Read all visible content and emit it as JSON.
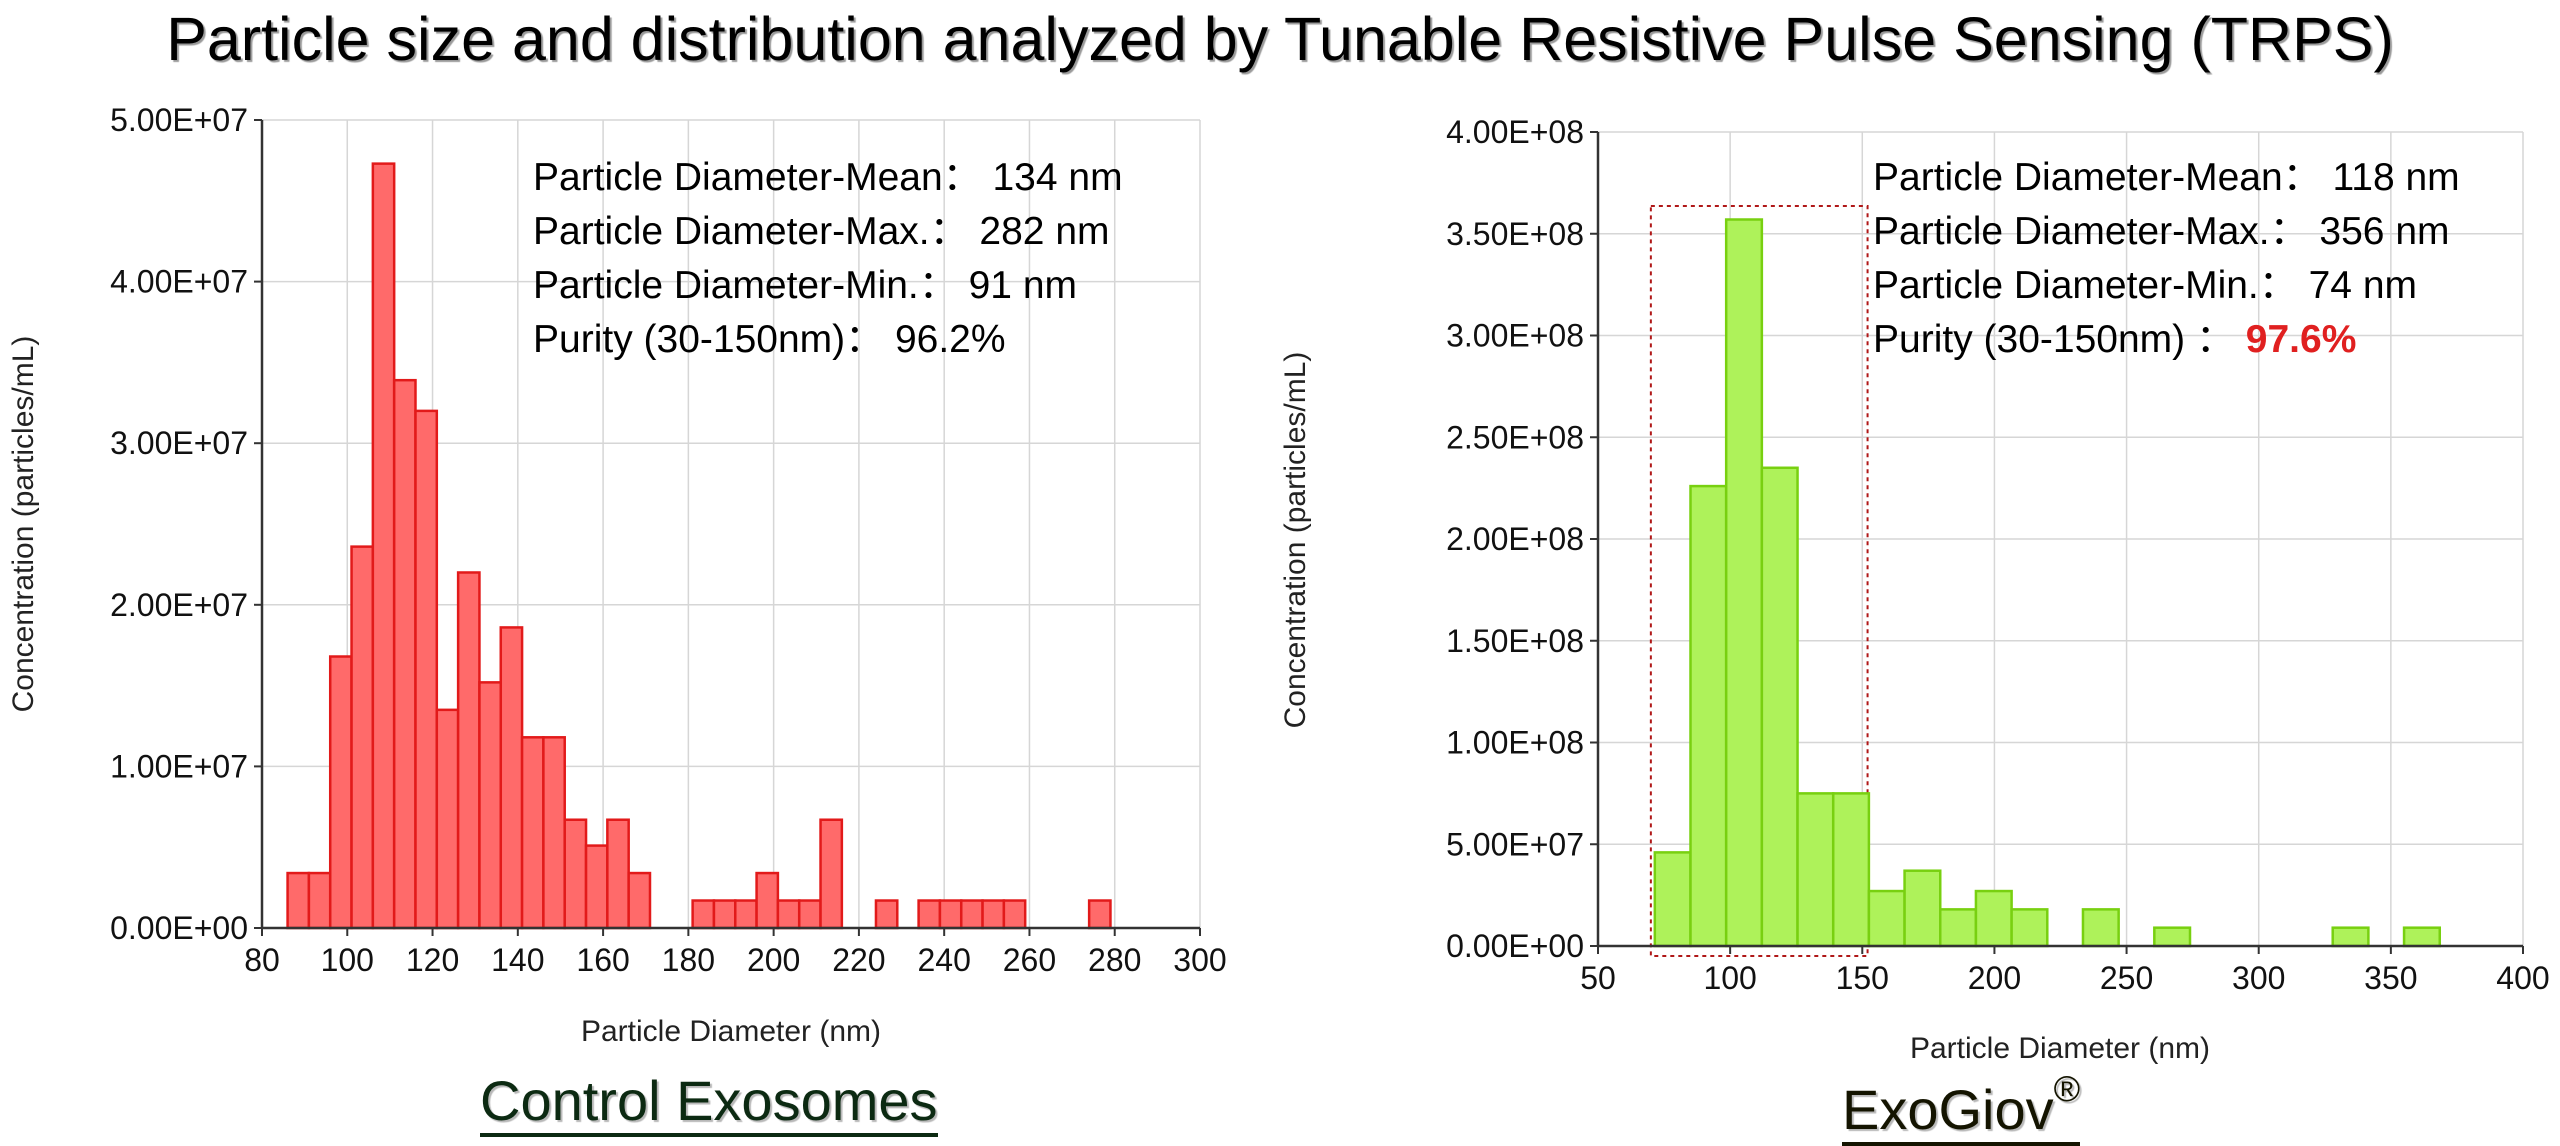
{
  "title": "Particle size and distribution analyzed by Tunable Resistive Pulse Sensing (TRPS)",
  "chart_data": [
    {
      "type": "bar",
      "caption": "Control Exosomes",
      "xlabel": "Particle Diameter (nm)",
      "ylabel": "Concentration (particles/mL)",
      "xlim": [
        80,
        300
      ],
      "ylim": [
        0,
        50000000
      ],
      "xticks": [
        "80",
        "100",
        "120",
        "140",
        "160",
        "180",
        "200",
        "220",
        "240",
        "260",
        "280",
        "300"
      ],
      "yticks": [
        "0.00E+00",
        "1.00E+07",
        "2.00E+07",
        "3.00E+07",
        "4.00E+07",
        "5.00E+07"
      ],
      "bin_width": 5,
      "bar_color": "#ff6a6a",
      "bar_edge": "#e21a1a",
      "grid": true,
      "bins_start": [
        86,
        91,
        96,
        101,
        106,
        111,
        116,
        121,
        126,
        131,
        136,
        141,
        146,
        151,
        156,
        161,
        166,
        181,
        186,
        191,
        196,
        201,
        206,
        211,
        224,
        234,
        239,
        244,
        249,
        254,
        274
      ],
      "values": [
        3400000,
        3400000,
        16800000,
        23600000,
        47300000,
        33900000,
        32000000,
        13500000,
        22000000,
        15200000,
        18600000,
        11800000,
        11800000,
        6700000,
        5100000,
        6700000,
        3400000,
        1700000,
        1700000,
        1700000,
        3400000,
        1700000,
        1700000,
        6700000,
        1700000,
        1700000,
        1700000,
        1700000,
        1700000,
        1700000,
        1700000
      ],
      "stats": [
        {
          "label": "Particle Diameter-Mean：",
          "value": "134 nm"
        },
        {
          "label": "Particle Diameter-Max.：",
          "value": "282 nm"
        },
        {
          "label": "Particle Diameter-Min.：",
          "value": "91 nm"
        },
        {
          "label": "Purity (30-150nm)：",
          "value": "96.2%"
        }
      ]
    },
    {
      "type": "bar",
      "caption": "ExoGiov",
      "caption_mark": "®",
      "xlabel": "Particle Diameter (nm)",
      "ylabel": "Concentration (particles/mL)",
      "xlim": [
        50,
        400
      ],
      "ylim": [
        0,
        400000000
      ],
      "xticks": [
        "50",
        "100",
        "150",
        "200",
        "250",
        "300",
        "350",
        "400"
      ],
      "yticks": [
        "0.00E+00",
        "5.00E+07",
        "1.00E+08",
        "1.50E+08",
        "2.00E+08",
        "2.50E+08",
        "3.00E+08",
        "3.50E+08",
        "4.00E+08"
      ],
      "bin_width": 13.5,
      "bar_color": "#aef25a",
      "bar_edge": "#78d010",
      "grid": true,
      "bins_start": [
        71.5,
        85,
        98.5,
        112,
        125.5,
        139,
        152.5,
        166,
        179.5,
        193,
        206.5,
        220,
        233.5,
        247,
        260.5,
        274,
        287.5,
        301,
        314.5,
        328,
        341.5,
        355
      ],
      "values": [
        46000000,
        226000000,
        357000000,
        235000000,
        75000000,
        75000000,
        27000000,
        37000000,
        18000000,
        27000000,
        18000000,
        0,
        18000000,
        0,
        9000000,
        0,
        0,
        0,
        0,
        9000000,
        0,
        9000000
      ],
      "highlight_range": [
        70,
        152
      ],
      "stats": [
        {
          "label": "Particle Diameter-Mean：",
          "value": "118 nm"
        },
        {
          "label": "Particle Diameter-Max.：",
          "value": "356 nm"
        },
        {
          "label": "Particle Diameter-Min.：",
          "value": "74 nm"
        },
        {
          "label": "Purity (30-150nm) ：",
          "value": "97.6%",
          "highlight": true
        }
      ]
    }
  ]
}
